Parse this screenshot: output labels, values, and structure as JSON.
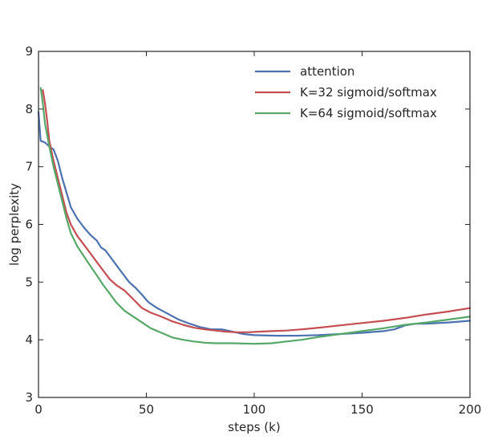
{
  "chart_data": {
    "type": "line",
    "title": "",
    "xlabel": "steps (k)",
    "ylabel": "log perplexity",
    "xlim": [
      0,
      200
    ],
    "ylim": [
      3,
      9
    ],
    "xticks": [
      0,
      50,
      100,
      150,
      200
    ],
    "yticks": [
      3,
      4,
      5,
      6,
      7,
      8,
      9
    ],
    "grid": false,
    "legend_position": "top-right",
    "series": [
      {
        "name": "attention",
        "color": "#4c72b0",
        "points": [
          [
            0,
            7.95
          ],
          [
            1,
            7.45
          ],
          [
            3,
            7.42
          ],
          [
            5,
            7.35
          ],
          [
            7,
            7.3
          ],
          [
            9,
            7.1
          ],
          [
            11,
            6.8
          ],
          [
            13,
            6.55
          ],
          [
            15,
            6.3
          ],
          [
            18,
            6.1
          ],
          [
            21,
            5.95
          ],
          [
            24,
            5.82
          ],
          [
            27,
            5.72
          ],
          [
            29,
            5.6
          ],
          [
            31,
            5.55
          ],
          [
            33,
            5.45
          ],
          [
            36,
            5.3
          ],
          [
            39,
            5.15
          ],
          [
            42,
            5.0
          ],
          [
            45,
            4.9
          ],
          [
            48,
            4.78
          ],
          [
            51,
            4.65
          ],
          [
            55,
            4.55
          ],
          [
            60,
            4.45
          ],
          [
            65,
            4.35
          ],
          [
            70,
            4.28
          ],
          [
            75,
            4.22
          ],
          [
            80,
            4.18
          ],
          [
            85,
            4.18
          ],
          [
            90,
            4.14
          ],
          [
            95,
            4.1
          ],
          [
            100,
            4.08
          ],
          [
            110,
            4.07
          ],
          [
            120,
            4.07
          ],
          [
            130,
            4.08
          ],
          [
            140,
            4.1
          ],
          [
            150,
            4.12
          ],
          [
            160,
            4.15
          ],
          [
            165,
            4.18
          ],
          [
            170,
            4.25
          ],
          [
            175,
            4.28
          ],
          [
            180,
            4.28
          ],
          [
            190,
            4.3
          ],
          [
            200,
            4.33
          ]
        ]
      },
      {
        "name": "K=32 sigmoid/softmax",
        "color": "#c44e52",
        "points": [
          [
            2,
            8.33
          ],
          [
            3,
            8.1
          ],
          [
            4,
            7.8
          ],
          [
            5,
            7.45
          ],
          [
            7,
            7.1
          ],
          [
            9,
            6.8
          ],
          [
            11,
            6.5
          ],
          [
            13,
            6.2
          ],
          [
            15,
            6.0
          ],
          [
            18,
            5.8
          ],
          [
            21,
            5.65
          ],
          [
            24,
            5.5
          ],
          [
            27,
            5.35
          ],
          [
            30,
            5.2
          ],
          [
            33,
            5.05
          ],
          [
            36,
            4.95
          ],
          [
            40,
            4.85
          ],
          [
            44,
            4.7
          ],
          [
            48,
            4.55
          ],
          [
            52,
            4.47
          ],
          [
            57,
            4.4
          ],
          [
            62,
            4.32
          ],
          [
            67,
            4.26
          ],
          [
            72,
            4.21
          ],
          [
            77,
            4.18
          ],
          [
            82,
            4.16
          ],
          [
            87,
            4.14
          ],
          [
            92,
            4.13
          ],
          [
            97,
            4.13
          ],
          [
            102,
            4.14
          ],
          [
            108,
            4.15
          ],
          [
            115,
            4.16
          ],
          [
            122,
            4.18
          ],
          [
            130,
            4.21
          ],
          [
            140,
            4.25
          ],
          [
            150,
            4.29
          ],
          [
            160,
            4.33
          ],
          [
            170,
            4.38
          ],
          [
            180,
            4.44
          ],
          [
            190,
            4.49
          ],
          [
            200,
            4.55
          ]
        ]
      },
      {
        "name": "K=64 sigmoid/softmax",
        "color": "#55a868",
        "points": [
          [
            1,
            8.37
          ],
          [
            2,
            8.1
          ],
          [
            3,
            7.75
          ],
          [
            5,
            7.35
          ],
          [
            7,
            7.0
          ],
          [
            9,
            6.7
          ],
          [
            11,
            6.4
          ],
          [
            13,
            6.1
          ],
          [
            15,
            5.85
          ],
          [
            18,
            5.62
          ],
          [
            21,
            5.45
          ],
          [
            24,
            5.28
          ],
          [
            27,
            5.12
          ],
          [
            30,
            4.95
          ],
          [
            33,
            4.8
          ],
          [
            36,
            4.65
          ],
          [
            40,
            4.5
          ],
          [
            44,
            4.4
          ],
          [
            48,
            4.3
          ],
          [
            52,
            4.2
          ],
          [
            57,
            4.12
          ],
          [
            62,
            4.04
          ],
          [
            67,
            4.0
          ],
          [
            72,
            3.97
          ],
          [
            77,
            3.95
          ],
          [
            82,
            3.94
          ],
          [
            90,
            3.94
          ],
          [
            100,
            3.93
          ],
          [
            108,
            3.94
          ],
          [
            115,
            3.97
          ],
          [
            122,
            4.0
          ],
          [
            130,
            4.05
          ],
          [
            140,
            4.1
          ],
          [
            150,
            4.15
          ],
          [
            160,
            4.2
          ],
          [
            170,
            4.26
          ],
          [
            180,
            4.3
          ],
          [
            190,
            4.35
          ],
          [
            200,
            4.4
          ]
        ]
      }
    ]
  }
}
